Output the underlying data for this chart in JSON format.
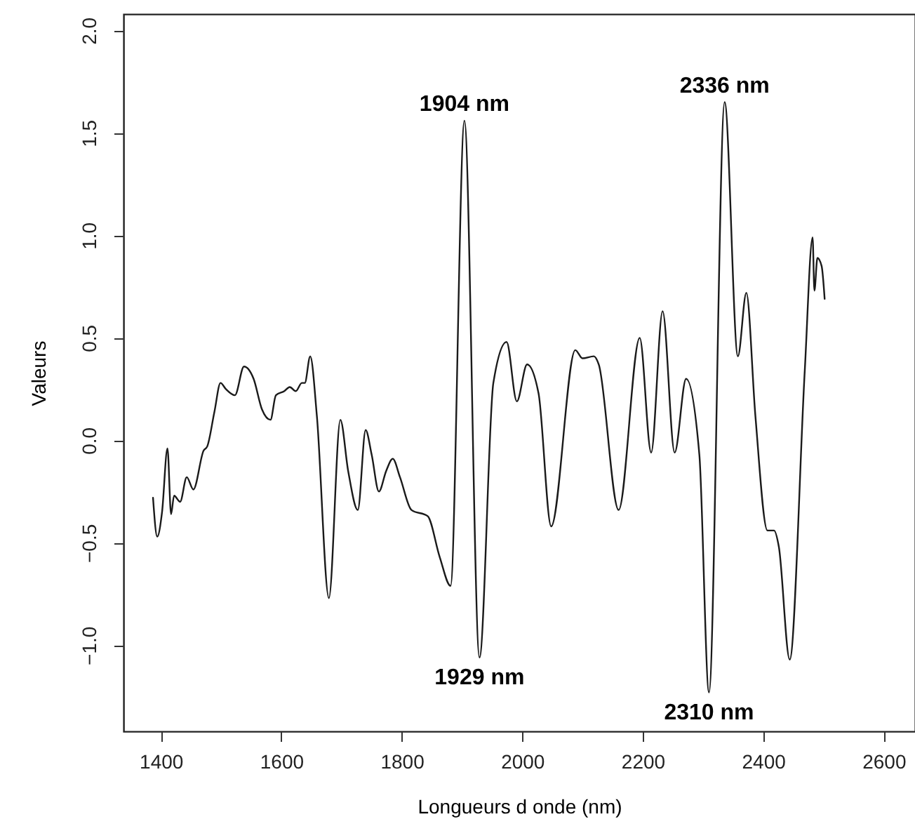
{
  "chart_data": {
    "type": "line",
    "xlabel": "Longueurs d onde (nm)",
    "ylabel": "Valeurs",
    "xlim": [
      1338,
      2652
    ],
    "ylim": [
      -1.42,
      2.08
    ],
    "xticks": [
      1400,
      1600,
      1800,
      2000,
      2200,
      2400,
      2600
    ],
    "yticks": [
      {
        "value": -1,
        "label": "−1.0"
      },
      {
        "value": -0.5,
        "label": "−0.5"
      },
      {
        "value": 0,
        "label": "0.0"
      },
      {
        "value": 0.5,
        "label": "0.5"
      },
      {
        "value": 1,
        "label": "1.0"
      },
      {
        "value": 1.5,
        "label": "1.5"
      },
      {
        "value": 2,
        "label": "2.0"
      }
    ],
    "grid": false,
    "marker": "none",
    "line_style": "solid",
    "x": [
      1387,
      1394,
      1402,
      1411,
      1417,
      1422,
      1432,
      1443,
      1454,
      1471,
      1477,
      1489,
      1499,
      1508,
      1523,
      1538,
      1554,
      1568,
      1582,
      1591,
      1605,
      1614,
      1624,
      1634,
      1639,
      1648,
      1659,
      1679,
      1698,
      1711,
      1727,
      1740,
      1750,
      1762,
      1774,
      1785,
      1797,
      1816,
      1843,
      1863,
      1881,
      1904,
      1929,
      1952,
      1974,
      1991,
      2008,
      2027,
      2048,
      2088,
      2100,
      2119,
      2127,
      2160,
      2195,
      2214,
      2233,
      2253,
      2272,
      2294,
      2310,
      2336,
      2358,
      2372,
      2387,
      2407,
      2418,
      2426,
      2444,
      2469,
      2482,
      2485,
      2490,
      2497,
      2502
    ],
    "series": [
      {
        "color": "#1a1a1a",
        "values": [
          -0.28,
          -0.47,
          -0.35,
          -0.04,
          -0.36,
          -0.27,
          -0.3,
          -0.18,
          -0.24,
          -0.05,
          -0.03,
          0.14,
          0.28,
          0.25,
          0.22,
          0.36,
          0.3,
          0.15,
          0.1,
          0.22,
          0.24,
          0.26,
          0.24,
          0.28,
          0.28,
          0.41,
          0.12,
          -0.77,
          0.1,
          -0.15,
          -0.34,
          0.05,
          -0.07,
          -0.25,
          -0.15,
          -0.09,
          -0.18,
          -0.34,
          -0.37,
          -0.57,
          -0.71,
          1.56,
          -1.06,
          0.28,
          0.48,
          0.19,
          0.37,
          0.23,
          -0.42,
          0.44,
          0.4,
          0.41,
          0.37,
          -0.34,
          0.5,
          -0.06,
          0.63,
          -0.06,
          0.3,
          -0.07,
          -1.23,
          1.65,
          0.41,
          0.72,
          0.12,
          -0.44,
          -0.44,
          -0.52,
          -1.07,
          0.34,
          0.99,
          0.73,
          0.89,
          0.85,
          0.69
        ]
      }
    ],
    "annotations": [
      {
        "text": "1904 nm",
        "x": 1904,
        "y": 1.56
      },
      {
        "text": "1929 nm",
        "x": 1929,
        "y": -1.06
      },
      {
        "text": "2336 nm",
        "x": 2336,
        "y": 1.65
      },
      {
        "text": "2310 nm",
        "x": 2310,
        "y": -1.23
      }
    ]
  }
}
